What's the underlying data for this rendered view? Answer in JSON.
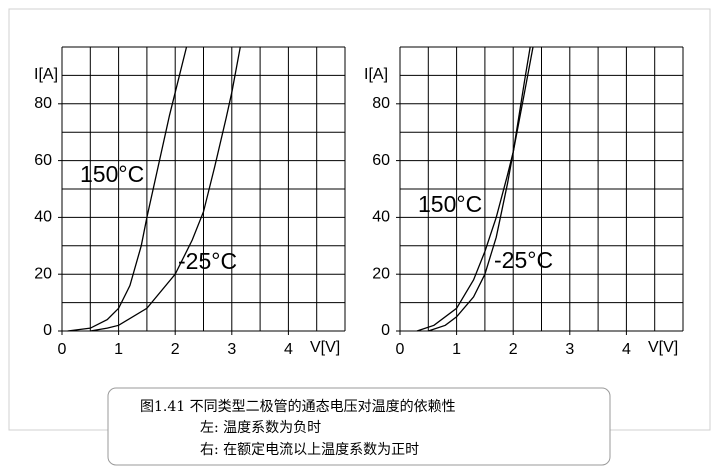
{
  "chart_data": [
    {
      "type": "line",
      "xlabel": "V[V]",
      "ylabel": "I[A]",
      "xlim": [
        0,
        5
      ],
      "ylim": [
        0,
        100
      ],
      "xticks": [
        0,
        1,
        2,
        3,
        4
      ],
      "yticks": [
        0,
        20,
        40,
        60,
        80
      ],
      "xgrid": [
        0,
        0.5,
        1,
        1.5,
        2,
        2.5,
        3,
        3.5,
        4,
        4.5,
        5
      ],
      "ygrid": [
        0,
        10,
        20,
        30,
        40,
        50,
        60,
        70,
        80,
        90,
        100
      ],
      "grid": true,
      "series": [
        {
          "name": "150°C",
          "color": "#000000",
          "x": [
            0.1,
            0.5,
            0.8,
            1,
            1.2,
            1.4,
            1.5,
            1.7,
            1.9,
            2.0,
            2.2
          ],
          "values": [
            0,
            1,
            4,
            8,
            16,
            30,
            40,
            58,
            76,
            84,
            100
          ]
        },
        {
          "name": "-25°C",
          "color": "#000000",
          "x": [
            0.5,
            0.8,
            1,
            1.5,
            2,
            2.3,
            2.5,
            2.7,
            2.9,
            3.0,
            3.15
          ],
          "values": [
            0,
            1,
            2,
            8,
            20,
            32,
            42,
            58,
            75,
            84,
            100
          ]
        }
      ]
    },
    {
      "type": "line",
      "xlabel": "V[V]",
      "ylabel": "I[A]",
      "xlim": [
        0,
        5
      ],
      "ylim": [
        0,
        100
      ],
      "xticks": [
        0,
        1,
        2,
        3,
        4
      ],
      "yticks": [
        0,
        20,
        40,
        60,
        80
      ],
      "xgrid": [
        0,
        0.5,
        1,
        1.5,
        2,
        2.5,
        3,
        3.5,
        4,
        4.5,
        5
      ],
      "ygrid": [
        0,
        10,
        20,
        30,
        40,
        50,
        60,
        70,
        80,
        90,
        100
      ],
      "grid": true,
      "series": [
        {
          "name": "150°C",
          "color": "#000000",
          "x": [
            0.3,
            0.6,
            1,
            1.3,
            1.5,
            1.7,
            1.9,
            2.0,
            2.2,
            2.35
          ],
          "values": [
            0,
            2,
            8,
            18,
            28,
            40,
            55,
            63,
            84,
            100
          ]
        },
        {
          "name": "-25°C",
          "color": "#000000",
          "x": [
            0.5,
            0.8,
            1,
            1.3,
            1.5,
            1.7,
            1.9,
            2.0,
            2.2,
            2.3
          ],
          "values": [
            0,
            2,
            5,
            12,
            20,
            33,
            52,
            63,
            88,
            100
          ]
        }
      ]
    }
  ],
  "caption": {
    "lines": [
      "图1.41 不同类型二极管的通态电压对温度的依赖性",
      "左: 温度系数为负时",
      "右: 在额定电流以上温度系数为正时"
    ]
  }
}
